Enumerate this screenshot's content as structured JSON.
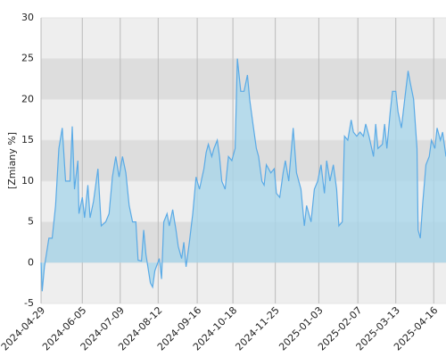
{
  "chart_data": {
    "type": "area",
    "y_label": "[Zmiany %]",
    "x": [
      "2024-04-29",
      "2024-04-30",
      "2024-05-02",
      "2024-05-06",
      "2024-05-09",
      "2024-05-12",
      "2024-05-15",
      "2024-05-18",
      "2024-05-21",
      "2024-05-25",
      "2024-05-27",
      "2024-05-29",
      "2024-06-01",
      "2024-06-02",
      "2024-06-05",
      "2024-06-07",
      "2024-06-10",
      "2024-06-12",
      "2024-06-15",
      "2024-06-19",
      "2024-06-22",
      "2024-06-26",
      "2024-06-29",
      "2024-07-02",
      "2024-07-05",
      "2024-07-08",
      "2024-07-11",
      "2024-07-14",
      "2024-07-17",
      "2024-07-20",
      "2024-07-23",
      "2024-07-25",
      "2024-07-28",
      "2024-07-30",
      "2024-08-01",
      "2024-08-05",
      "2024-08-07",
      "2024-08-09",
      "2024-08-13",
      "2024-08-15",
      "2024-08-17",
      "2024-08-20",
      "2024-08-22",
      "2024-08-25",
      "2024-08-28",
      "2024-08-30",
      "2024-09-02",
      "2024-09-04",
      "2024-09-06",
      "2024-09-09",
      "2024-09-12",
      "2024-09-15",
      "2024-09-18",
      "2024-09-22",
      "2024-09-24",
      "2024-09-26",
      "2024-09-29",
      "2024-10-01",
      "2024-10-04",
      "2024-10-06",
      "2024-10-08",
      "2024-10-11",
      "2024-10-14",
      "2024-10-17",
      "2024-10-20",
      "2024-10-22",
      "2024-10-25",
      "2024-10-28",
      "2024-10-31",
      "2024-11-02",
      "2024-11-05",
      "2024-11-08",
      "2024-11-10",
      "2024-11-13",
      "2024-11-15",
      "2024-11-17",
      "2024-11-21",
      "2024-11-24",
      "2024-11-26",
      "2024-11-29",
      "2024-12-02",
      "2024-12-04",
      "2024-12-07",
      "2024-12-11",
      "2024-12-14",
      "2024-12-18",
      "2024-12-21",
      "2024-12-23",
      "2024-12-27",
      "2024-12-30",
      "2025-01-02",
      "2025-01-05",
      "2025-01-08",
      "2025-01-10",
      "2025-01-13",
      "2025-01-16",
      "2025-01-19",
      "2025-01-21",
      "2025-01-24",
      "2025-01-26",
      "2025-01-29",
      "2025-02-01",
      "2025-02-03",
      "2025-02-06",
      "2025-02-09",
      "2025-02-12",
      "2025-02-14",
      "2025-02-17",
      "2025-02-21",
      "2025-02-23",
      "2025-02-25",
      "2025-03-01",
      "2025-03-03",
      "2025-03-05",
      "2025-03-08",
      "2025-03-10",
      "2025-03-13",
      "2025-03-15",
      "2025-03-18",
      "2025-03-21",
      "2025-03-24",
      "2025-03-26",
      "2025-03-29",
      "2025-04-01",
      "2025-04-02",
      "2025-04-04",
      "2025-04-06",
      "2025-04-09",
      "2025-04-12",
      "2025-04-14",
      "2025-04-17",
      "2025-04-19",
      "2025-04-22",
      "2025-04-24",
      "2025-04-27"
    ],
    "values": [
      0,
      -3.5,
      -0.5,
      3,
      3,
      7,
      14,
      16.5,
      10,
      10,
      16.7,
      9,
      12.5,
      6,
      8,
      5.5,
      9.5,
      5.5,
      7.5,
      11.5,
      4.5,
      5,
      6,
      10.5,
      13,
      10.5,
      13,
      11,
      7,
      5,
      5,
      0.3,
      0.2,
      4,
      1,
      -2.5,
      -3,
      -1,
      0.5,
      -2,
      5,
      6,
      4.5,
      6.5,
      4,
      2,
      0.5,
      2.5,
      -0.5,
      2.5,
      6,
      10.5,
      9,
      11.5,
      13.5,
      14.5,
      13,
      14,
      15,
      13,
      10,
      9,
      13,
      12.5,
      14,
      25,
      21,
      21,
      23,
      20,
      17,
      14,
      13,
      10,
      9.5,
      12,
      11,
      11.5,
      8.5,
      8,
      11,
      12.5,
      10,
      16.5,
      11,
      9,
      4.5,
      7,
      5,
      9,
      10,
      12,
      8.5,
      12.5,
      10,
      12,
      9,
      4.5,
      5,
      15.5,
      15,
      17.5,
      16,
      15.5,
      16,
      15.5,
      17,
      15.5,
      13,
      17,
      14,
      14.5,
      17,
      14,
      18.5,
      21,
      21,
      18.5,
      16.5,
      20,
      23.5,
      22,
      20,
      14,
      4,
      3,
      7,
      12,
      13,
      15,
      14,
      16.5,
      15,
      16,
      13
    ],
    "color": "#5aaae6",
    "fill": "#a9d6ea",
    "xlim": [
      "2024-04-29",
      "2025-04-27"
    ],
    "xticks": [
      "2024-04-29",
      "2024-06-05",
      "2024-07-09",
      "2024-08-12",
      "2024-09-16",
      "2024-10-18",
      "2024-11-25",
      "2025-01-03",
      "2025-02-07",
      "2025-03-13",
      "2025-04-16"
    ],
    "ylim": [
      -5,
      30
    ],
    "yticks": [
      -5,
      0,
      5,
      10,
      15,
      20,
      25,
      30
    ],
    "grid": true
  }
}
